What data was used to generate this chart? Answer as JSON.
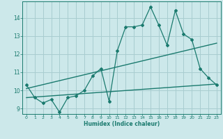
{
  "title": "",
  "xlabel": "Humidex (Indice chaleur)",
  "ylabel": "",
  "x_data": [
    0,
    1,
    2,
    3,
    4,
    5,
    6,
    7,
    8,
    9,
    10,
    11,
    12,
    13,
    14,
    15,
    16,
    17,
    18,
    19,
    20,
    21,
    22,
    23
  ],
  "y_data": [
    10.3,
    9.6,
    9.3,
    9.5,
    8.8,
    9.6,
    9.7,
    10.0,
    10.8,
    11.2,
    9.4,
    12.2,
    13.5,
    13.5,
    13.6,
    14.6,
    13.6,
    12.5,
    14.4,
    13.1,
    12.8,
    11.2,
    10.7,
    10.3
  ],
  "trend1_x": [
    0,
    23
  ],
  "trend1_y": [
    10.1,
    12.6
  ],
  "trend2_x": [
    0,
    23
  ],
  "trend2_y": [
    9.6,
    10.35
  ],
  "line_color": "#1a7a6e",
  "bg_color": "#cce8ea",
  "grid_color": "#a8cdd0",
  "xlim": [
    -0.5,
    23.5
  ],
  "ylim": [
    8.7,
    14.9
  ],
  "yticks": [
    9,
    10,
    11,
    12,
    13,
    14
  ],
  "xticks": [
    0,
    1,
    2,
    3,
    4,
    5,
    6,
    7,
    8,
    9,
    10,
    11,
    12,
    13,
    14,
    15,
    16,
    17,
    18,
    19,
    20,
    21,
    22,
    23
  ]
}
